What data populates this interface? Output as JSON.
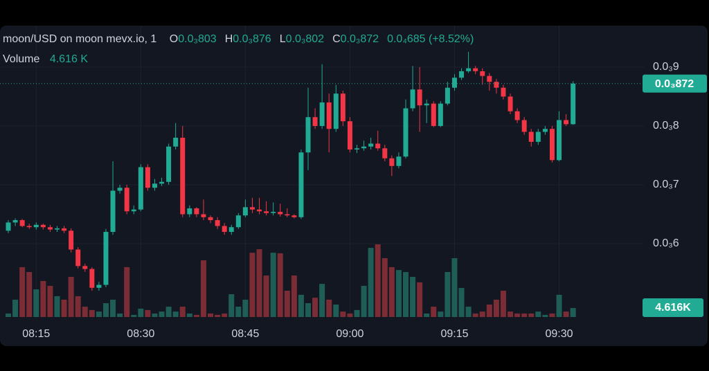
{
  "chart_data": {
    "type": "candlestick",
    "header": {
      "symbol": "moon/USD on moon mevx.io, 1",
      "ohlc": [
        {
          "key": "O",
          "value": "0.0₃803"
        },
        {
          "key": "H",
          "value": "0.0₃876"
        },
        {
          "key": "L",
          "value": "0.0₃802"
        },
        {
          "key": "C",
          "value": "0.0₃872"
        }
      ],
      "change": "0.0₄685 (+8.52%)",
      "volume_title": "Volume",
      "volume_value": "4.616 K"
    },
    "x": [
      "08:11",
      "08:12",
      "08:13",
      "08:14",
      "08:15",
      "08:16",
      "08:17",
      "08:18",
      "08:19",
      "08:20",
      "08:21",
      "08:22",
      "08:23",
      "08:24",
      "08:25",
      "08:26",
      "08:27",
      "08:28",
      "08:29",
      "08:30",
      "08:31",
      "08:32",
      "08:33",
      "08:34",
      "08:35",
      "08:36",
      "08:37",
      "08:38",
      "08:39",
      "08:40",
      "08:41",
      "08:42",
      "08:43",
      "08:44",
      "08:45",
      "08:46",
      "08:47",
      "08:48",
      "08:49",
      "08:50",
      "08:51",
      "08:52",
      "08:53",
      "08:54",
      "08:55",
      "08:56",
      "08:57",
      "08:58",
      "08:59",
      "09:00",
      "09:01",
      "09:02",
      "09:03",
      "09:04",
      "09:05",
      "09:06",
      "09:07",
      "09:08",
      "09:09",
      "09:10",
      "09:11",
      "09:12",
      "09:13",
      "09:14",
      "09:15",
      "09:16",
      "09:17",
      "09:18",
      "09:19",
      "09:20",
      "09:21",
      "09:22",
      "09:23",
      "09:24",
      "09:25",
      "09:26",
      "09:27",
      "09:28",
      "09:29",
      "09:30",
      "09:31",
      "09:32"
    ],
    "open": [
      0.000622,
      0.000636,
      0.00064,
      0.00063,
      0.000628,
      0.000632,
      0.000628,
      0.000624,
      0.000626,
      0.000622,
      0.00059,
      0.000562,
      0.000557,
      0.000525,
      0.00053,
      0.00062,
      0.00069,
      0.000695,
      0.000655,
      0.000658,
      0.00073,
      0.000695,
      0.000702,
      0.000705,
      0.000765,
      0.00078,
      0.00065,
      0.00066,
      0.00065,
      0.000645,
      0.00064,
      0.00063,
      0.00062,
      0.000628,
      0.000648,
      0.000662,
      0.000658,
      0.000655,
      0.000652,
      0.000654,
      0.00065,
      0.000648,
      0.000645,
      0.000755,
      0.000815,
      0.0008,
      0.00084,
      0.000795,
      0.000855,
      0.000808,
      0.00076,
      0.000762,
      0.000765,
      0.00077,
      0.000762,
      0.000745,
      0.000732,
      0.000748,
      0.00083,
      0.000862,
      0.000835,
      0.000838,
      0.0008,
      0.000838,
      0.000865,
      0.000882,
      0.000893,
      0.000898,
      0.000893,
      0.000885,
      0.000875,
      0.000865,
      0.00085,
      0.000825,
      0.00081,
      0.00079,
      0.000773,
      0.00079,
      0.000795,
      0.000742,
      0.00081,
      0.000803
    ],
    "high": [
      0.00064,
      0.000643,
      0.000642,
      0.000634,
      0.000636,
      0.000634,
      0.000632,
      0.00063,
      0.00063,
      0.000626,
      0.000594,
      0.000566,
      0.00056,
      0.000535,
      0.000625,
      0.00074,
      0.0007,
      0.0007,
      0.000665,
      0.000735,
      0.000735,
      0.00071,
      0.000712,
      0.00077,
      0.000805,
      0.0008,
      0.000665,
      0.000662,
      0.000675,
      0.000648,
      0.000645,
      0.000635,
      0.000632,
      0.000652,
      0.000675,
      0.000678,
      0.000678,
      0.000672,
      0.00067,
      0.000668,
      0.00066,
      0.00065,
      0.00076,
      0.000865,
      0.00083,
      0.000905,
      0.000855,
      0.00087,
      0.00086,
      0.000815,
      0.000768,
      0.000775,
      0.00078,
      0.000792,
      0.000768,
      0.00075,
      0.000755,
      0.000845,
      0.000902,
      0.0009,
      0.000845,
      0.000842,
      0.000842,
      0.000875,
      0.000888,
      0.000898,
      0.000926,
      0.000902,
      0.000898,
      0.00089,
      0.00088,
      0.00087,
      0.000855,
      0.00083,
      0.000815,
      0.000795,
      0.000795,
      0.0008,
      0.0008,
      0.000825,
      0.00082,
      0.000876
    ],
    "low": [
      0.000618,
      0.00063,
      0.000628,
      0.000625,
      0.000624,
      0.000624,
      0.00062,
      0.00062,
      0.000618,
      0.000585,
      0.000558,
      0.000552,
      0.00052,
      0.00052,
      0.000526,
      0.000615,
      0.000685,
      0.00065,
      0.00065,
      0.000655,
      0.00069,
      0.00069,
      0.000698,
      0.0007,
      0.00076,
      0.000645,
      0.000645,
      0.000645,
      0.00064,
      0.000635,
      0.000625,
      0.000615,
      0.000615,
      0.000625,
      0.000645,
      0.000652,
      0.00065,
      0.000648,
      0.000648,
      0.000646,
      0.000645,
      0.000643,
      0.000642,
      0.000725,
      0.000795,
      0.000795,
      0.000755,
      0.00079,
      0.0008,
      0.000755,
      0.000754,
      0.000758,
      0.00076,
      0.000758,
      0.00074,
      0.000715,
      0.000728,
      0.000745,
      0.000825,
      0.00079,
      0.000805,
      0.000798,
      0.000798,
      0.000835,
      0.00086,
      0.000878,
      0.00089,
      0.000888,
      0.00087,
      0.00086,
      0.000855,
      0.000845,
      0.00082,
      0.000805,
      0.000785,
      0.000765,
      0.000768,
      0.000785,
      0.000738,
      0.00074,
      0.0008,
      0.000802
    ],
    "close": [
      0.000636,
      0.00064,
      0.00063,
      0.000628,
      0.000632,
      0.000628,
      0.000624,
      0.000626,
      0.000622,
      0.00059,
      0.000562,
      0.000557,
      0.000525,
      0.00053,
      0.00062,
      0.00069,
      0.000695,
      0.000655,
      0.000658,
      0.00073,
      0.000695,
      0.000702,
      0.000705,
      0.000765,
      0.00078,
      0.00065,
      0.00066,
      0.00065,
      0.000645,
      0.00064,
      0.00063,
      0.00062,
      0.000628,
      0.000648,
      0.000662,
      0.000658,
      0.000655,
      0.000652,
      0.000654,
      0.00065,
      0.000648,
      0.000645,
      0.000755,
      0.000815,
      0.0008,
      0.00084,
      0.000795,
      0.000855,
      0.000808,
      0.00076,
      0.000762,
      0.000765,
      0.00077,
      0.000762,
      0.000745,
      0.000732,
      0.000748,
      0.00083,
      0.000862,
      0.000835,
      0.000838,
      0.0008,
      0.000838,
      0.000865,
      0.000882,
      0.000893,
      0.000898,
      0.000893,
      0.000885,
      0.000875,
      0.000865,
      0.00085,
      0.000825,
      0.00081,
      0.00079,
      0.000773,
      0.00079,
      0.000795,
      0.000742,
      0.00081,
      0.000803,
      0.000872
    ],
    "volume": [
      1.8,
      8.9,
      25.6,
      23.1,
      14.2,
      18.5,
      16.0,
      10.7,
      8.9,
      20.6,
      10.7,
      5.3,
      3.6,
      2.8,
      7.1,
      8.9,
      1.8,
      25.6,
      1.1,
      4.3,
      3.6,
      1.8,
      2.8,
      5.3,
      2.8,
      5.3,
      1.8,
      1.1,
      29.1,
      1.8,
      1.1,
      1.8,
      11.7,
      5.3,
      8.9,
      33.0,
      34.8,
      21.3,
      33.0,
      32.7,
      13.5,
      21.3,
      11.4,
      7.1,
      9.9,
      17.0,
      8.9,
      6.4,
      2.8,
      1.8,
      3.6,
      16.0,
      35.5,
      37.3,
      30.2,
      25.6,
      24.1,
      23.1,
      20.6,
      17.8,
      1.8,
      5.3,
      2.8,
      23.1,
      30.2,
      14.9,
      5.3,
      1.8,
      2.8,
      6.4,
      8.9,
      13.5,
      2.8,
      1.8,
      1.8,
      1.8,
      2.8,
      1.1,
      1.8,
      11.4,
      2.8,
      4.616
    ],
    "up_color": "#22ab94",
    "down_color": "#f23645",
    "volume_up_color": "#1f5e57",
    "volume_down_color": "#7b2c35",
    "ylim": [
      0.000473,
      0.000967
    ],
    "yticks": [
      {
        "value": 0.0009,
        "label": "0.0₃9"
      },
      {
        "value": 0.0008,
        "label": "0.0₃8"
      },
      {
        "value": 0.0007,
        "label": "0.0₃7"
      },
      {
        "value": 0.0006,
        "label": "0.0₃6"
      }
    ],
    "xticks": [
      "08:15",
      "08:30",
      "08:45",
      "09:00",
      "09:15",
      "09:30"
    ],
    "grid": true,
    "last_price_label": "0.0₃872",
    "last_volume_label": "4.616K"
  }
}
